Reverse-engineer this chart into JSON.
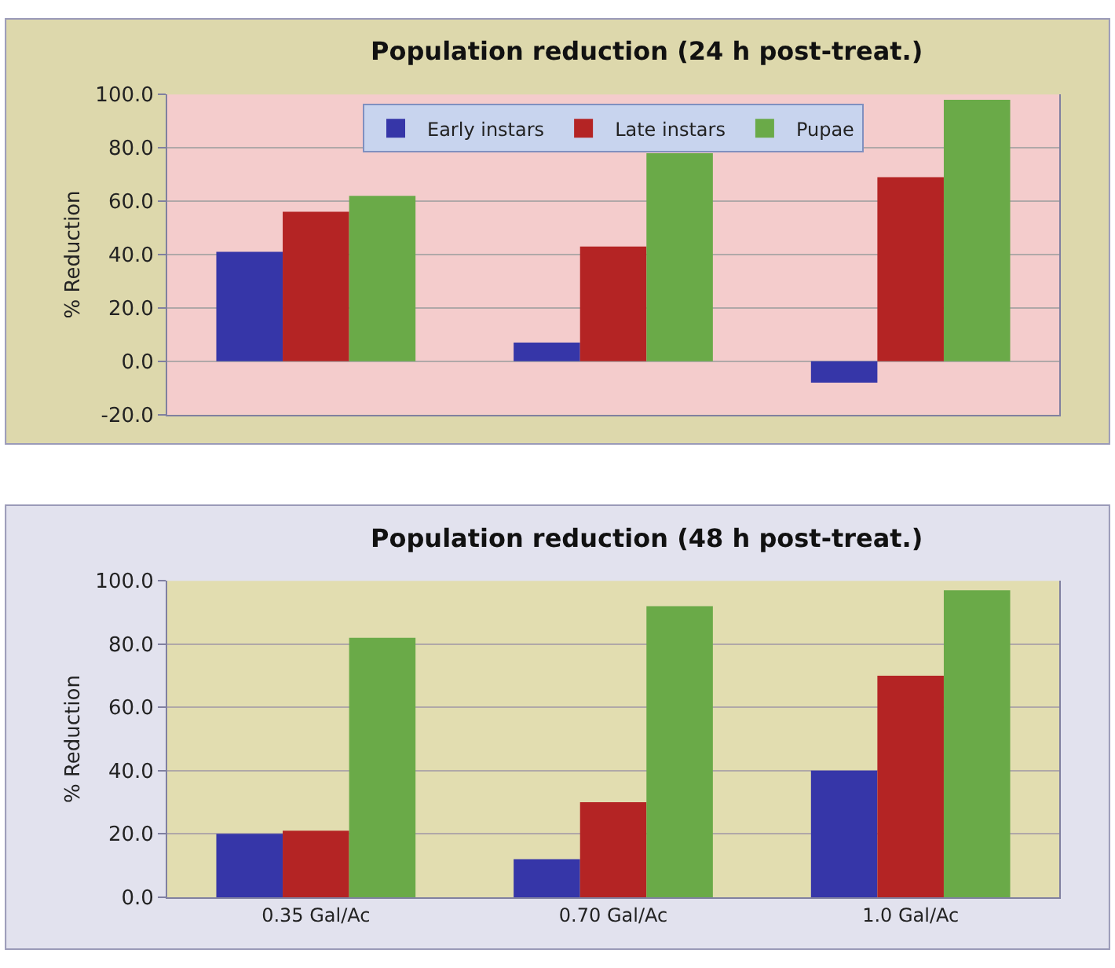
{
  "chart_data": [
    {
      "type": "bar",
      "title": "Population reduction (24 h post-treat.)",
      "ylabel": "% Reduction",
      "categories": [
        null,
        null,
        null
      ],
      "series": [
        {
          "name": "Early instars",
          "color": "#3636a8",
          "values": [
            41,
            7,
            -8
          ]
        },
        {
          "name": "Late instars",
          "color": "#b42424",
          "values": [
            56,
            43,
            69
          ]
        },
        {
          "name": "Pupae",
          "color": "#6aaa48",
          "values": [
            62,
            78,
            98
          ]
        }
      ],
      "ylim": [
        -20,
        100
      ],
      "yticks": [
        {
          "value": -20,
          "label": "-20.0"
        },
        {
          "value": 0,
          "label": "0.0"
        },
        {
          "value": 20,
          "label": "20.0"
        },
        {
          "value": 40,
          "label": "40.0"
        },
        {
          "value": 60,
          "label": "60.0"
        },
        {
          "value": 80,
          "label": "80.0"
        },
        {
          "value": 100,
          "label": "100.0"
        }
      ],
      "grid": "y",
      "legend": "top",
      "tick_labels": "y"
    },
    {
      "type": "bar",
      "title": "Population reduction (48 h post-treat.)",
      "ylabel": "% Reduction",
      "categories": [
        "0.35 Gal/Ac",
        "0.70 Gal/Ac",
        "1.0 Gal/Ac"
      ],
      "series": [
        {
          "color": "#3636a8",
          "values": [
            20,
            12,
            40
          ]
        },
        {
          "color": "#b42424",
          "values": [
            21,
            30,
            70
          ]
        },
        {
          "color": "#6aaa48",
          "values": [
            82,
            92,
            97
          ]
        }
      ],
      "ylim": [
        0,
        100
      ],
      "yticks": [
        {
          "value": 0,
          "label": "0.0"
        },
        {
          "value": 20,
          "label": "20.0"
        },
        {
          "value": 40,
          "label": "40.0"
        },
        {
          "value": 60,
          "label": "60.0"
        },
        {
          "value": 80,
          "label": "80.0"
        },
        {
          "value": 100,
          "label": "100.0"
        }
      ],
      "grid": "y"
    }
  ]
}
